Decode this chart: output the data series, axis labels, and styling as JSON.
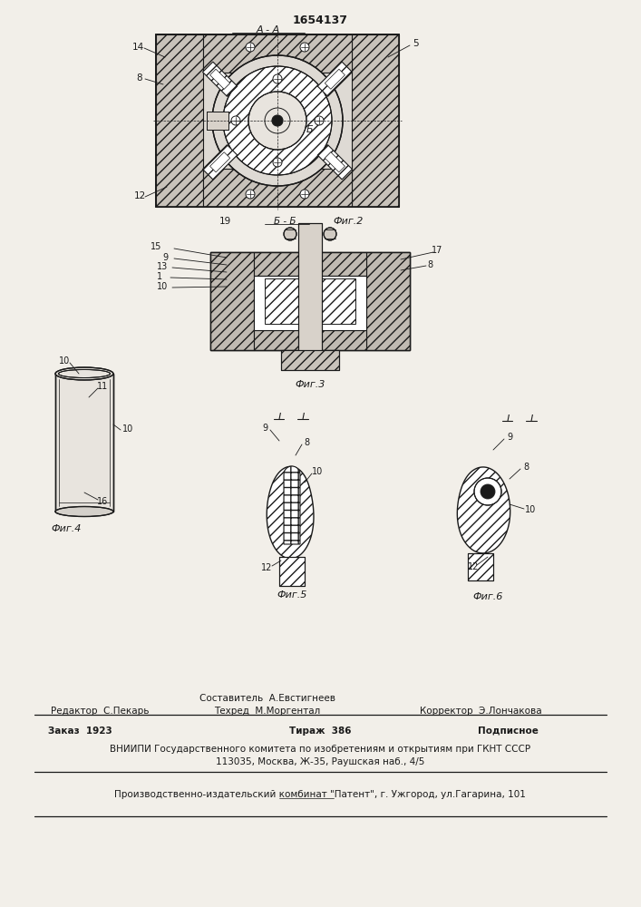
{
  "patent_number": "1654137",
  "bg_color": "#f2efe9",
  "line_color": "#1a1a1a",
  "fig2_title": "А - А",
  "fig2_cap": "Б - Б",
  "fig2_name": "Фиг.2",
  "fig3_name": "Фиг.3",
  "fig4_name": "Фиг.4",
  "fig5_name": "Фиг.5",
  "fig6_name": "Фиг.6",
  "footer_editor": "Редактор  С.Пекарь",
  "footer_comp_top": "Составитель  А.Евстигнеев",
  "footer_tech": "Техред  М.Моргентал",
  "footer_corrector": "Корректор  Э.Лончакова",
  "footer_order": "Заказ  1923",
  "footer_print": "Тираж  386",
  "footer_signed": "Подписное",
  "footer_institute": "ВНИИПИ Государственного комитета по изобретениям и открытиям при ГКНТ СССР",
  "footer_address": "113035, Москва, Ж-35, Раушская наб., 4/5",
  "footer_publisher": "Производственно-издательский комбинат \"Патент\", г. Ужгород, ул.Гагарина, 101"
}
